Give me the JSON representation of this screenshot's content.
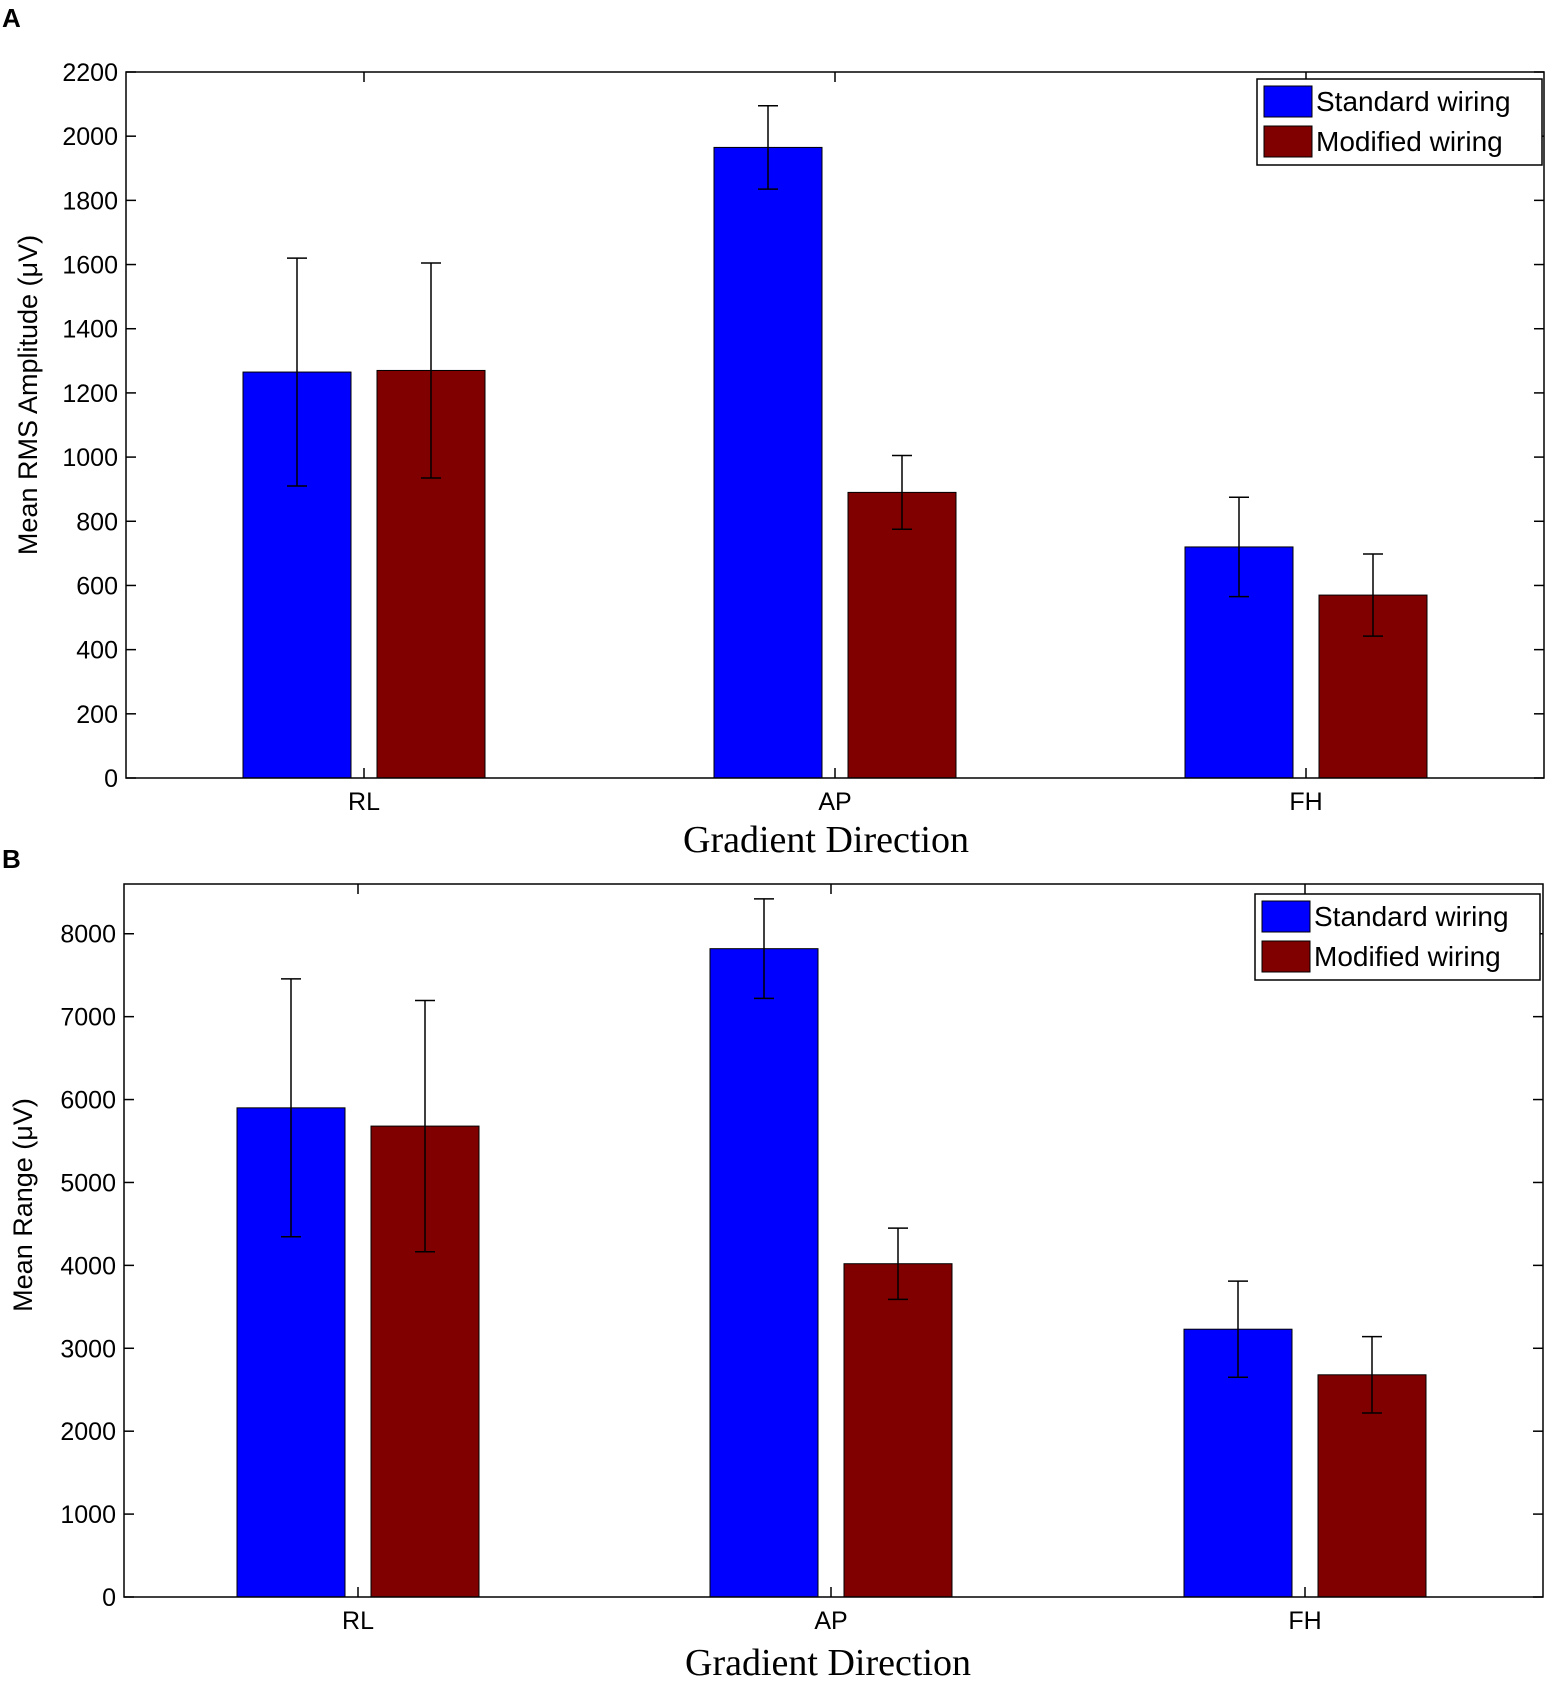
{
  "colors": {
    "standard": "#0000ff",
    "modified": "#800000",
    "axis": "#000000",
    "background": "#ffffff"
  },
  "chart_data": [
    {
      "panel": "A",
      "type": "bar",
      "xlabel": "Gradient Direction",
      "ylabel": "Mean RMS Amplitude (μV)",
      "ylim": [
        0,
        2200
      ],
      "yticks": [
        0,
        200,
        400,
        600,
        800,
        1000,
        1200,
        1400,
        1600,
        1800,
        2000,
        2200
      ],
      "categories": [
        "RL",
        "AP",
        "FH"
      ],
      "legend": {
        "position": "top-right"
      },
      "series": [
        {
          "name": "Standard wiring",
          "values": [
            1265,
            1965,
            720
          ],
          "errors": [
            355,
            130,
            155
          ]
        },
        {
          "name": "Modified wiring",
          "values": [
            1270,
            890,
            570
          ],
          "errors": [
            335,
            115,
            128
          ]
        }
      ]
    },
    {
      "panel": "B",
      "type": "bar",
      "xlabel": "Gradient Direction",
      "ylabel": "Mean Range (μV)",
      "ylim": [
        0,
        8600
      ],
      "yticks": [
        0,
        1000,
        2000,
        3000,
        4000,
        5000,
        6000,
        7000,
        8000
      ],
      "categories": [
        "RL",
        "AP",
        "FH"
      ],
      "legend": {
        "position": "top-right"
      },
      "series": [
        {
          "name": "Standard wiring",
          "values": [
            5900,
            7820,
            3230
          ],
          "errors": [
            1555,
            600,
            580
          ]
        },
        {
          "name": "Modified wiring",
          "values": [
            5680,
            4020,
            2680
          ],
          "errors": [
            1515,
            430,
            460
          ]
        }
      ]
    }
  ]
}
